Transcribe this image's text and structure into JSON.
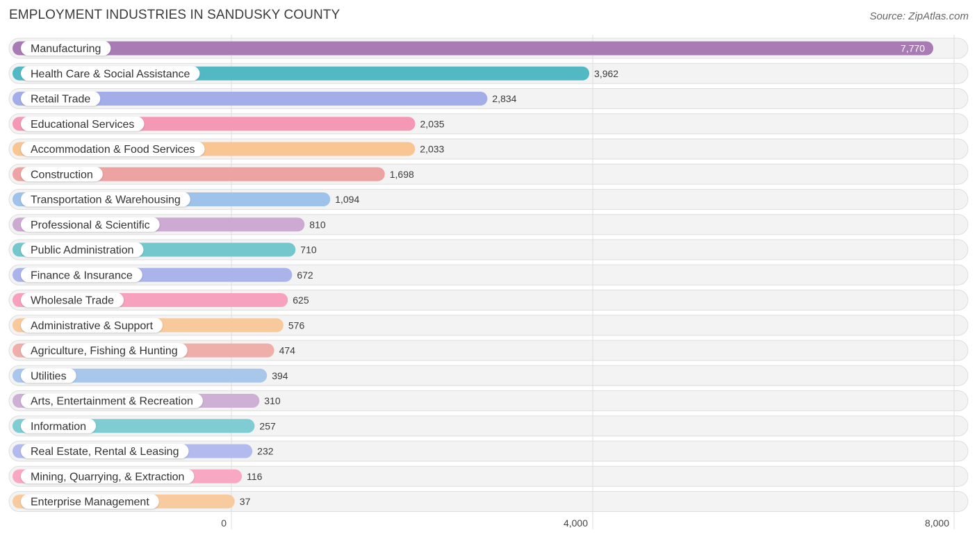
{
  "header": {
    "title": "EMPLOYMENT INDUSTRIES IN SANDUSKY COUNTY",
    "source": "Source: ZipAtlas.com"
  },
  "chart_data": {
    "type": "bar",
    "orientation": "horizontal",
    "title": "EMPLOYMENT INDUSTRIES IN SANDUSKY COUNTY",
    "xlim": [
      0,
      8000
    ],
    "ticks": [
      {
        "value": 0,
        "label": "0"
      },
      {
        "value": 4000,
        "label": "4,000"
      },
      {
        "value": 8000,
        "label": "8,000"
      }
    ],
    "grid": true,
    "categories": [
      {
        "label": "Manufacturing",
        "value": 7770,
        "display": "7,770",
        "color": "#a97bb5"
      },
      {
        "label": "Health Care & Social Assistance",
        "value": 3962,
        "display": "3,962",
        "color": "#52b9c4"
      },
      {
        "label": "Retail Trade",
        "value": 2834,
        "display": "2,834",
        "color": "#a3aee8"
      },
      {
        "label": "Educational Services",
        "value": 2035,
        "display": "2,035",
        "color": "#f598b6"
      },
      {
        "label": "Accommodation & Food Services",
        "value": 2033,
        "display": "2,033",
        "color": "#f8c593"
      },
      {
        "label": "Construction",
        "value": 1698,
        "display": "1,698",
        "color": "#eda3a1"
      },
      {
        "label": "Transportation & Warehousing",
        "value": 1094,
        "display": "1,094",
        "color": "#9fc2ea"
      },
      {
        "label": "Professional & Scientific",
        "value": 810,
        "display": "810",
        "color": "#ccaad2"
      },
      {
        "label": "Public Administration",
        "value": 710,
        "display": "710",
        "color": "#73c7cd"
      },
      {
        "label": "Finance & Insurance",
        "value": 672,
        "display": "672",
        "color": "#aab4ea"
      },
      {
        "label": "Wholesale Trade",
        "value": 625,
        "display": "625",
        "color": "#f7a1bf"
      },
      {
        "label": "Administrative & Support",
        "value": 576,
        "display": "576",
        "color": "#f8c99b"
      },
      {
        "label": "Agriculture, Fishing & Hunting",
        "value": 474,
        "display": "474",
        "color": "#efaeaa"
      },
      {
        "label": "Utilities",
        "value": 394,
        "display": "394",
        "color": "#a8c7eb"
      },
      {
        "label": "Arts, Entertainment & Recreation",
        "value": 310,
        "display": "310",
        "color": "#cdb0d4"
      },
      {
        "label": "Information",
        "value": 257,
        "display": "257",
        "color": "#7fcdd3"
      },
      {
        "label": "Real Estate, Rental & Leasing",
        "value": 232,
        "display": "232",
        "color": "#b3bbee"
      },
      {
        "label": "Mining, Quarrying, & Extraction",
        "value": 116,
        "display": "116",
        "color": "#f8a8c3"
      },
      {
        "label": "Enterprise Management",
        "value": 37,
        "display": "37",
        "color": "#f8cb9f"
      }
    ]
  }
}
